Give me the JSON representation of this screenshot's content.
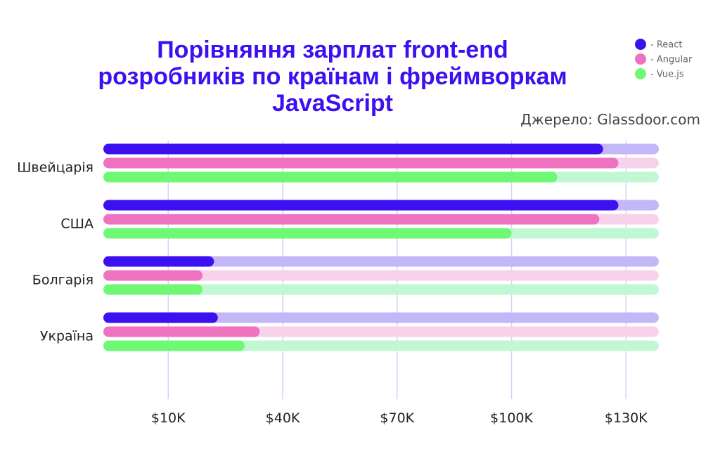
{
  "chart_data": {
    "type": "bar",
    "orientation": "horizontal",
    "title_lines": [
      "Порівняння зарплат front-end",
      "розробників по країнам і фреймворкам",
      "JavaScript"
    ],
    "source": "Джерело: Glassdoor.com",
    "categories": [
      "Швейцарія",
      "США",
      "Болгарія",
      "Україна"
    ],
    "series": [
      {
        "name": "React",
        "legend_label": "- React",
        "color": "#3c10f0",
        "track_color": "#c4b7f8",
        "values": [
          124,
          128,
          22,
          23
        ]
      },
      {
        "name": "Angular",
        "legend_label": "- Angular",
        "color": "#ef72c0",
        "track_color": "#f8d2ea",
        "values": [
          128,
          123,
          19,
          34
        ]
      },
      {
        "name": "Vue.js",
        "legend_label": "- Vue.js",
        "color": "#6ef874",
        "track_color": "#c1f7d2",
        "values": [
          112,
          100,
          19,
          30
        ]
      }
    ],
    "xlim": [
      -7,
      138.6
    ],
    "xticks": [
      10,
      40,
      70,
      100,
      130
    ],
    "xtick_labels": [
      "$10K",
      "$40K",
      "$70K",
      "$100K",
      "$130K"
    ],
    "grid": "vertical",
    "legend_position": "top-right"
  }
}
